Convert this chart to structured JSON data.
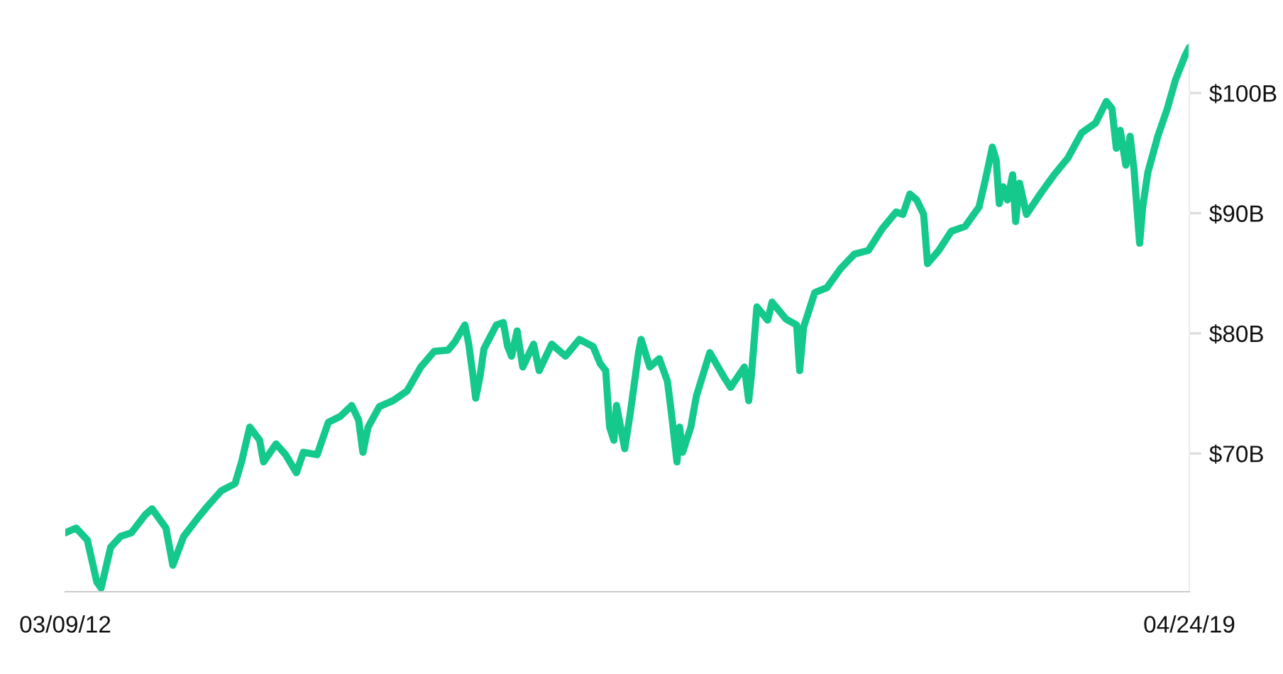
{
  "chart_data": {
    "type": "line",
    "x": [
      "2012-03-09",
      "2012-04-03",
      "2012-04-29",
      "2012-05-21",
      "2012-05-31",
      "2012-06-22",
      "2012-07-15",
      "2012-08-09",
      "2012-09-10",
      "2012-09-26",
      "2012-10-28",
      "2012-11-13",
      "2012-12-08",
      "2013-01-09",
      "2013-02-01",
      "2013-03-05",
      "2013-04-06",
      "2013-04-21",
      "2013-05-10",
      "2013-06-02",
      "2013-06-11",
      "2013-07-10",
      "2013-08-01",
      "2013-08-26",
      "2013-09-11",
      "2013-10-13",
      "2013-11-08",
      "2013-12-06",
      "2014-01-01",
      "2014-01-17",
      "2014-01-27",
      "2014-02-08",
      "2014-03-06",
      "2014-04-07",
      "2014-05-09",
      "2014-06-10",
      "2014-07-11",
      "2014-08-12",
      "2014-08-28",
      "2014-09-20",
      "2014-09-29",
      "2014-10-09",
      "2014-10-15",
      "2014-10-25",
      "2014-11-03",
      "2014-12-02",
      "2014-12-18",
      "2014-12-28",
      "2015-01-06",
      "2015-01-19",
      "2015-02-01",
      "2015-02-26",
      "2015-03-11",
      "2015-04-09",
      "2015-05-11",
      "2015-06-12",
      "2015-07-14",
      "2015-07-30",
      "2015-08-12",
      "2015-08-21",
      "2015-08-31",
      "2015-09-06",
      "2015-09-25",
      "2015-10-08",
      "2015-10-27",
      "2015-11-02",
      "2015-11-22",
      "2015-12-14",
      "2016-01-02",
      "2016-01-11",
      "2016-01-24",
      "2016-01-30",
      "2016-02-06",
      "2016-02-25",
      "2016-03-09",
      "2016-04-09",
      "2016-05-11",
      "2016-05-27",
      "2016-06-28",
      "2016-07-08",
      "2016-07-14",
      "2016-07-27",
      "2016-08-21",
      "2016-08-31",
      "2016-10-02",
      "2016-10-27",
      "2016-11-03",
      "2016-11-12",
      "2016-12-08",
      "2017-01-05",
      "2017-02-06",
      "2017-03-10",
      "2017-04-11",
      "2017-05-13",
      "2017-06-14",
      "2017-06-30",
      "2017-07-16",
      "2017-08-01",
      "2017-08-17",
      "2017-08-26",
      "2017-09-21",
      "2017-10-20",
      "2017-11-21",
      "2017-12-23",
      "2018-01-07",
      "2018-01-23",
      "2018-02-01",
      "2018-02-08",
      "2018-02-17",
      "2018-02-27",
      "2018-03-11",
      "2018-03-18",
      "2018-03-27",
      "2018-04-12",
      "2018-05-14",
      "2018-06-15",
      "2018-07-17",
      "2018-08-18",
      "2018-09-19",
      "2018-10-14",
      "2018-10-27",
      "2018-11-06",
      "2018-11-15",
      "2018-11-28",
      "2018-12-08",
      "2018-12-17",
      "2018-12-30",
      "2019-01-06",
      "2019-01-18",
      "2019-02-10",
      "2019-03-04",
      "2019-03-23",
      "2019-04-14",
      "2019-04-24"
    ],
    "series": [
      {
        "color": "#14c98b",
        "values": [
          63.4,
          63.8,
          62.8,
          59.3,
          58.8,
          62.2,
          63.1,
          63.4,
          64.9,
          65.4,
          63.8,
          60.7,
          63.1,
          64.6,
          65.6,
          66.9,
          67.5,
          69.3,
          72.2,
          71.1,
          69.3,
          70.8,
          69.9,
          68.4,
          70.1,
          69.9,
          72.6,
          73.1,
          74.0,
          72.8,
          70.1,
          72.2,
          73.9,
          74.4,
          75.2,
          77.2,
          78.5,
          78.6,
          79.3,
          80.7,
          79.1,
          76.4,
          74.6,
          76.4,
          78.7,
          80.7,
          80.9,
          78.9,
          78.1,
          80.2,
          77.2,
          79.1,
          76.9,
          79.1,
          78.1,
          79.5,
          78.9,
          77.5,
          76.9,
          72.2,
          71.1,
          74.0,
          70.4,
          73.4,
          78.4,
          79.5,
          77.2,
          77.9,
          76.0,
          73.4,
          69.3,
          72.2,
          70.1,
          72.2,
          74.8,
          78.4,
          76.4,
          75.5,
          77.2,
          74.4,
          76.4,
          82.2,
          81.1,
          82.6,
          81.2,
          80.7,
          76.9,
          80.5,
          83.4,
          83.8,
          85.4,
          86.6,
          86.9,
          88.7,
          90.1,
          89.9,
          91.6,
          91.1,
          89.9,
          85.8,
          86.9,
          88.5,
          88.9,
          90.5,
          92.8,
          95.5,
          94.4,
          90.8,
          92.2,
          91.1,
          93.2,
          89.3,
          92.5,
          89.9,
          91.6,
          93.2,
          94.6,
          96.7,
          97.5,
          99.3,
          98.7,
          95.4,
          96.9,
          94.0,
          96.4,
          93.6,
          87.5,
          90.5,
          93.4,
          96.4,
          98.7,
          101.1,
          103.1,
          103.8
        ]
      }
    ],
    "xlim": [
      "2012-03-09",
      "2019-04-24"
    ],
    "xticks": [
      {
        "value": "2012-03-09",
        "label": "03/09/12"
      },
      {
        "value": "2019-04-24",
        "label": "04/24/19"
      }
    ],
    "ylim": [
      58.5,
      104.2
    ],
    "yticks": [
      {
        "value": 70,
        "label": "$70B"
      },
      {
        "value": 80,
        "label": "$80B"
      },
      {
        "value": 90,
        "label": "$90B"
      },
      {
        "value": 100,
        "label": "$100B"
      }
    ],
    "marker": "none",
    "line_style": "solid"
  }
}
